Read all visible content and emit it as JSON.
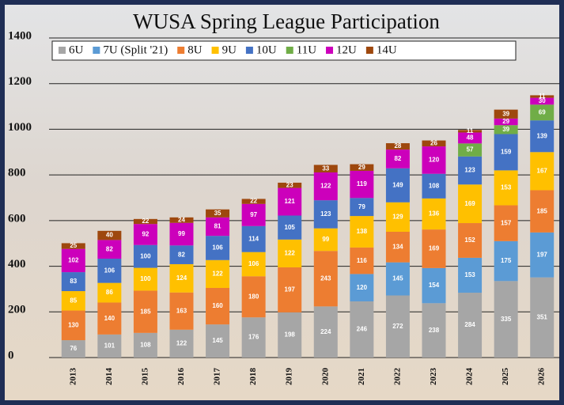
{
  "chart_data": {
    "type": "stacked_bar",
    "title": "WUSA Spring League Participation",
    "categories": [
      "2013",
      "2014",
      "2015",
      "2016",
      "2017",
      "2018",
      "2019",
      "2020",
      "2021",
      "2022",
      "2023",
      "2024",
      "2025",
      "2026"
    ],
    "series": [
      {
        "name": "6U",
        "color": "#a6a6a6",
        "values": [
          76,
          101,
          108,
          122,
          145,
          176,
          198,
          224,
          246,
          272,
          238,
          284,
          335,
          351
        ]
      },
      {
        "name": "7U (Split '21)",
        "color": "#5b9bd5",
        "values": [
          null,
          null,
          null,
          null,
          null,
          null,
          null,
          null,
          120,
          145,
          154,
          153,
          175,
          197
        ]
      },
      {
        "name": "8U",
        "color": "#ed7d31",
        "values": [
          130,
          140,
          185,
          163,
          160,
          180,
          197,
          243,
          116,
          134,
          169,
          152,
          157,
          185
        ]
      },
      {
        "name": "9U",
        "color": "#ffc000",
        "values": [
          85,
          86,
          100,
          124,
          122,
          106,
          122,
          99,
          138,
          129,
          136,
          169,
          153,
          167
        ]
      },
      {
        "name": "10U",
        "color": "#4472c4",
        "values": [
          83,
          106,
          100,
          82,
          106,
          114,
          105,
          123,
          79,
          149,
          108,
          123,
          159,
          139
        ]
      },
      {
        "name": "11U",
        "color": "#70ad47",
        "values": [
          null,
          null,
          null,
          null,
          null,
          null,
          null,
          null,
          null,
          null,
          null,
          57,
          39,
          69
        ]
      },
      {
        "name": "12U",
        "color": "#cc00bb",
        "values": [
          102,
          82,
          92,
          99,
          81,
          97,
          121,
          122,
          119,
          82,
          120,
          48,
          29,
          30
        ]
      },
      {
        "name": "14U",
        "color": "#9e480e",
        "values": [
          25,
          40,
          22,
          24,
          35,
          22,
          23,
          33,
          29,
          28,
          26,
          11,
          39,
          11
        ]
      }
    ],
    "ylim": [
      0,
      1400
    ],
    "yticks": [
      0,
      200,
      400,
      600,
      800,
      1000,
      1200,
      1400
    ],
    "grid": true
  }
}
